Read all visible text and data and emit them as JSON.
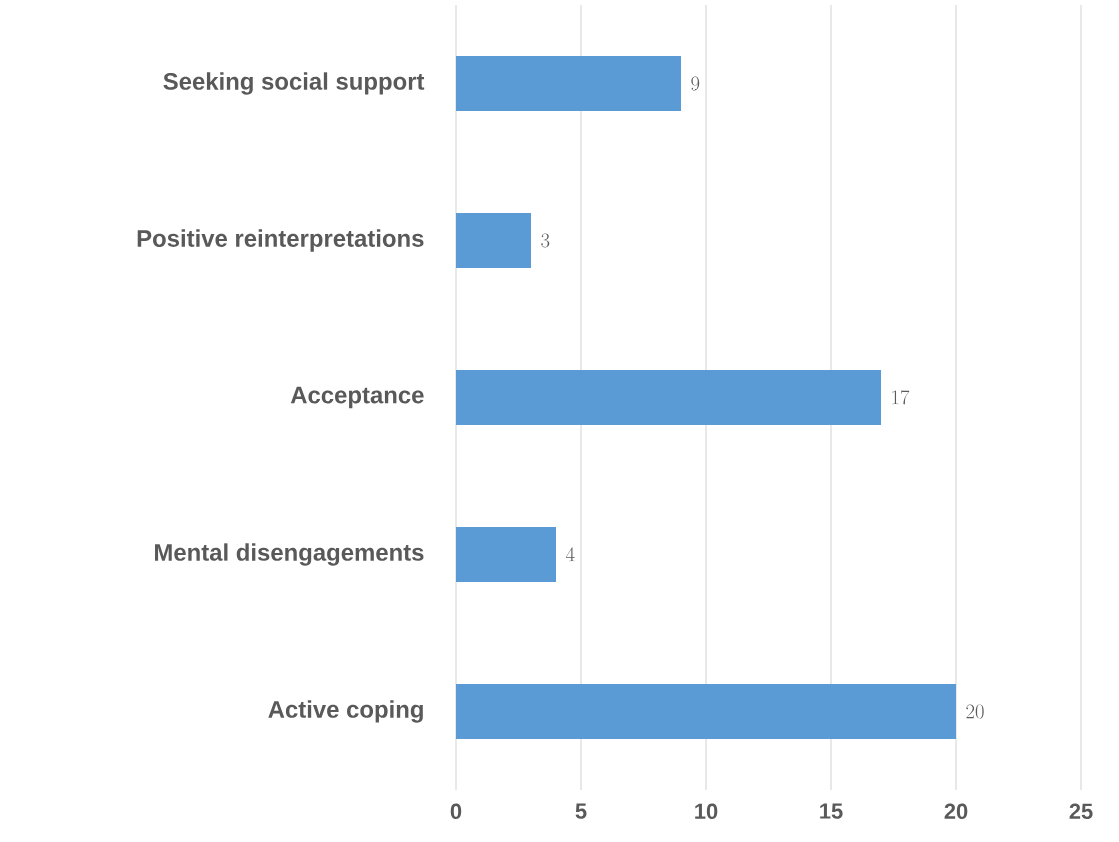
{
  "chart_data": {
    "type": "bar",
    "orientation": "horizontal",
    "categories": [
      "Seeking social support",
      "Positive reinterpretations",
      "Acceptance",
      "Mental disengagements",
      "Active coping"
    ],
    "values": [
      9,
      3,
      17,
      4,
      20
    ],
    "color": "#5b9bd5",
    "xlim": [
      0,
      25
    ],
    "xticks": [
      0,
      5,
      10,
      15,
      20,
      25
    ],
    "grid": "x",
    "data_labels": true
  }
}
